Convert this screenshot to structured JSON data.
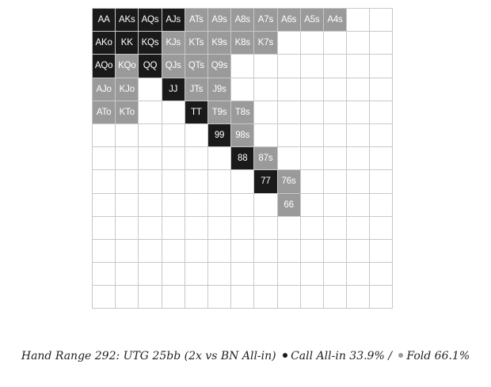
{
  "colors": {
    "call": "#1a1a1a",
    "fold": "#9a9a9a",
    "empty": "#ffffff",
    "border": "#c8c8c8"
  },
  "cells": [
    [
      "AA",
      "AKs",
      "AQs",
      "AJs",
      "ATs",
      "A9s",
      "A8s",
      "A7s",
      "A6s",
      "A5s",
      "A4s",
      "",
      ""
    ],
    [
      "AKo",
      "KK",
      "KQs",
      "KJs",
      "KTs",
      "K9s",
      "K8s",
      "K7s",
      "",
      "",
      "",
      "",
      ""
    ],
    [
      "AQo",
      "KQo",
      "QQ",
      "QJs",
      "QTs",
      "Q9s",
      "",
      "",
      "",
      "",
      "",
      "",
      ""
    ],
    [
      "AJo",
      "KJo",
      "",
      "JJ",
      "JTs",
      "J9s",
      "",
      "",
      "",
      "",
      "",
      "",
      ""
    ],
    [
      "ATo",
      "KTo",
      "",
      "",
      "TT",
      "T9s",
      "T8s",
      "",
      "",
      "",
      "",
      "",
      ""
    ],
    [
      "",
      "",
      "",
      "",
      "",
      "99",
      "98s",
      "",
      "",
      "",
      "",
      "",
      ""
    ],
    [
      "",
      "",
      "",
      "",
      "",
      "",
      "88",
      "87s",
      "",
      "",
      "",
      "",
      ""
    ],
    [
      "",
      "",
      "",
      "",
      "",
      "",
      "",
      "77",
      "76s",
      "",
      "",
      "",
      ""
    ],
    [
      "",
      "",
      "",
      "",
      "",
      "",
      "",
      "",
      "66",
      "",
      "",
      "",
      ""
    ],
    [
      "",
      "",
      "",
      "",
      "",
      "",
      "",
      "",
      "",
      "",
      "",
      "",
      ""
    ],
    [
      "",
      "",
      "",
      "",
      "",
      "",
      "",
      "",
      "",
      "",
      "",
      "",
      ""
    ],
    [
      "",
      "",
      "",
      "",
      "",
      "",
      "",
      "",
      "",
      "",
      "",
      "",
      ""
    ],
    [
      "",
      "",
      "",
      "",
      "",
      "",
      "",
      "",
      "",
      "",
      "",
      "",
      ""
    ]
  ],
  "actions": [
    [
      "call",
      "call",
      "call",
      "call",
      "fold",
      "fold",
      "fold",
      "fold",
      "fold",
      "fold",
      "fold",
      "",
      ""
    ],
    [
      "call",
      "call",
      "call",
      "fold",
      "fold",
      "fold",
      "fold",
      "fold",
      "",
      "",
      "",
      "",
      ""
    ],
    [
      "call",
      "fold",
      "call",
      "fold",
      "fold",
      "fold",
      "",
      "",
      "",
      "",
      "",
      "",
      ""
    ],
    [
      "fold",
      "fold",
      "",
      "call",
      "fold",
      "fold",
      "",
      "",
      "",
      "",
      "",
      "",
      ""
    ],
    [
      "fold",
      "fold",
      "",
      "",
      "call",
      "fold",
      "fold",
      "",
      "",
      "",
      "",
      "",
      ""
    ],
    [
      "",
      "",
      "",
      "",
      "",
      "call",
      "fold",
      "",
      "",
      "",
      "",
      "",
      ""
    ],
    [
      "",
      "",
      "",
      "",
      "",
      "",
      "call",
      "fold",
      "",
      "",
      "",
      "",
      ""
    ],
    [
      "",
      "",
      "",
      "",
      "",
      "",
      "",
      "call",
      "fold",
      "",
      "",
      "",
      ""
    ],
    [
      "",
      "",
      "",
      "",
      "",
      "",
      "",
      "",
      "fold",
      "",
      "",
      "",
      ""
    ],
    [
      "",
      "",
      "",
      "",
      "",
      "",
      "",
      "",
      "",
      "",
      "",
      "",
      ""
    ],
    [
      "",
      "",
      "",
      "",
      "",
      "",
      "",
      "",
      "",
      "",
      "",
      "",
      ""
    ],
    [
      "",
      "",
      "",
      "",
      "",
      "",
      "",
      "",
      "",
      "",
      "",
      "",
      ""
    ],
    [
      "",
      "",
      "",
      "",
      "",
      "",
      "",
      "",
      "",
      "",
      "",
      "",
      ""
    ]
  ],
  "caption": {
    "title": "Hand Range 292: UTG 25bb (2x vs BN All-in)",
    "call_label": "Call All-in 33.9% /",
    "fold_label": "Fold 66.1%"
  }
}
